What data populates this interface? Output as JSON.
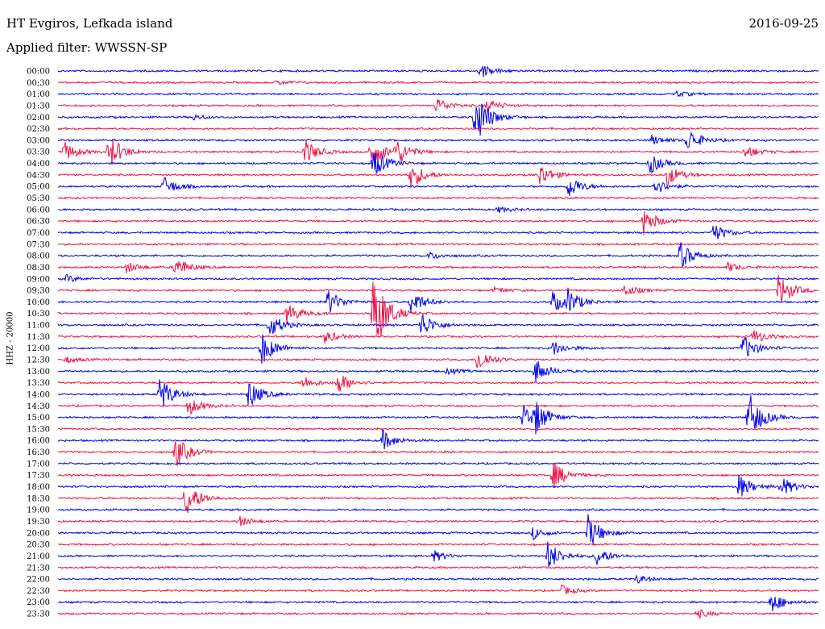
{
  "header": {
    "station": "HT Evgiros, Lefkada island",
    "filter": "Applied filter: WWSSN-SP",
    "date": "2016-09-25"
  },
  "colors": {
    "even_trace": "#0000ee",
    "odd_trace": "#ee1144"
  },
  "chart_data": {
    "type": "line",
    "title": "HT Evgiros, Lefkada island",
    "subtitle": "Applied filter: WWSSN-SP",
    "date": "2016-09-25",
    "ylabel": "HHZ - 20000",
    "xlabel": "",
    "trace_minutes": 30,
    "y_tick_labels": [
      "00:00",
      "00:30",
      "01:00",
      "01:30",
      "02:00",
      "02:30",
      "03:00",
      "03:30",
      "04:00",
      "04:30",
      "05:00",
      "05:30",
      "06:00",
      "06:30",
      "07:00",
      "07:30",
      "08:00",
      "08:30",
      "09:00",
      "09:30",
      "10:00",
      "10:30",
      "11:00",
      "11:30",
      "12:00",
      "12:30",
      "13:00",
      "13:30",
      "14:00",
      "14:30",
      "15:00",
      "15:30",
      "16:00",
      "16:30",
      "17:00",
      "17:30",
      "18:00",
      "18:30",
      "19:00",
      "19:30",
      "20:00",
      "20:30",
      "21:00",
      "21:30",
      "22:00",
      "22:30",
      "23:00",
      "23:30"
    ],
    "events": [
      {
        "row": 0,
        "minute": 16.7,
        "amp": 0.35
      },
      {
        "row": 0,
        "minute": 16.6,
        "amp": 0.3
      },
      {
        "row": 1,
        "minute": 8.6,
        "amp": 0.2
      },
      {
        "row": 2,
        "minute": 24.4,
        "amp": 0.25
      },
      {
        "row": 3,
        "minute": 14.9,
        "amp": 0.7
      },
      {
        "row": 3,
        "minute": 16.9,
        "amp": 0.6
      },
      {
        "row": 4,
        "minute": 16.4,
        "amp": 3.0
      },
      {
        "row": 4,
        "minute": 5.3,
        "amp": 0.25
      },
      {
        "row": 6,
        "minute": 23.4,
        "amp": 0.45
      },
      {
        "row": 6,
        "minute": 24.8,
        "amp": 1.1
      },
      {
        "row": 7,
        "minute": 0.2,
        "amp": 1.0
      },
      {
        "row": 7,
        "minute": 2.0,
        "amp": 1.6
      },
      {
        "row": 7,
        "minute": 9.7,
        "amp": 1.2
      },
      {
        "row": 7,
        "minute": 12.3,
        "amp": 1.6
      },
      {
        "row": 7,
        "minute": 13.3,
        "amp": 1.2
      },
      {
        "row": 7,
        "minute": 27.1,
        "amp": 0.6
      },
      {
        "row": 8,
        "minute": 12.4,
        "amp": 1.4
      },
      {
        "row": 8,
        "minute": 23.3,
        "amp": 1.0
      },
      {
        "row": 9,
        "minute": 13.9,
        "amp": 1.3
      },
      {
        "row": 9,
        "minute": 19.0,
        "amp": 1.0
      },
      {
        "row": 9,
        "minute": 24.0,
        "amp": 1.0
      },
      {
        "row": 10,
        "minute": 4.1,
        "amp": 1.0
      },
      {
        "row": 10,
        "minute": 20.1,
        "amp": 1.1
      },
      {
        "row": 10,
        "minute": 23.5,
        "amp": 0.8
      },
      {
        "row": 12,
        "minute": 17.3,
        "amp": 0.3
      },
      {
        "row": 13,
        "minute": 23.1,
        "amp": 1.2
      },
      {
        "row": 14,
        "minute": 25.8,
        "amp": 0.9
      },
      {
        "row": 16,
        "minute": 24.5,
        "amp": 1.3
      },
      {
        "row": 16,
        "minute": 14.6,
        "amp": 0.35
      },
      {
        "row": 17,
        "minute": 2.7,
        "amp": 0.5
      },
      {
        "row": 17,
        "minute": 4.6,
        "amp": 1.0
      },
      {
        "row": 17,
        "minute": 26.4,
        "amp": 0.4
      },
      {
        "row": 18,
        "minute": 0.3,
        "amp": 0.35
      },
      {
        "row": 19,
        "minute": 17.2,
        "amp": 0.3
      },
      {
        "row": 19,
        "minute": 22.3,
        "amp": 0.6
      },
      {
        "row": 19,
        "minute": 28.4,
        "amp": 1.6
      },
      {
        "row": 20,
        "minute": 10.6,
        "amp": 1.2
      },
      {
        "row": 20,
        "minute": 13.9,
        "amp": 1.2
      },
      {
        "row": 20,
        "minute": 19.5,
        "amp": 1.0
      },
      {
        "row": 20,
        "minute": 20.1,
        "amp": 1.0
      },
      {
        "row": 21,
        "minute": 9.0,
        "amp": 1.0
      },
      {
        "row": 21,
        "minute": 12.4,
        "amp": 4.5
      },
      {
        "row": 22,
        "minute": 14.3,
        "amp": 1.2
      },
      {
        "row": 22,
        "minute": 8.3,
        "amp": 1.2
      },
      {
        "row": 23,
        "minute": 27.4,
        "amp": 0.7
      },
      {
        "row": 23,
        "minute": 10.5,
        "amp": 0.6
      },
      {
        "row": 24,
        "minute": 8.0,
        "amp": 1.6
      },
      {
        "row": 24,
        "minute": 19.5,
        "amp": 0.7
      },
      {
        "row": 24,
        "minute": 27.0,
        "amp": 1.2
      },
      {
        "row": 25,
        "minute": 0.3,
        "amp": 0.3
      },
      {
        "row": 25,
        "minute": 16.5,
        "amp": 1.2
      },
      {
        "row": 26,
        "minute": 18.8,
        "amp": 1.2
      },
      {
        "row": 26,
        "minute": 15.3,
        "amp": 0.3
      },
      {
        "row": 27,
        "minute": 9.6,
        "amp": 0.7
      },
      {
        "row": 27,
        "minute": 11.0,
        "amp": 1.0
      },
      {
        "row": 28,
        "minute": 4.0,
        "amp": 1.6
      },
      {
        "row": 28,
        "minute": 7.5,
        "amp": 1.3
      },
      {
        "row": 29,
        "minute": 5.1,
        "amp": 0.9
      },
      {
        "row": 30,
        "minute": 18.3,
        "amp": 1.3
      },
      {
        "row": 30,
        "minute": 18.8,
        "amp": 1.3
      },
      {
        "row": 30,
        "minute": 27.2,
        "amp": 2.5
      },
      {
        "row": 32,
        "minute": 12.8,
        "amp": 0.9
      },
      {
        "row": 33,
        "minute": 4.6,
        "amp": 1.5
      },
      {
        "row": 35,
        "minute": 19.5,
        "amp": 1.3
      },
      {
        "row": 36,
        "minute": 26.8,
        "amp": 1.2
      },
      {
        "row": 36,
        "minute": 28.5,
        "amp": 0.9
      },
      {
        "row": 37,
        "minute": 5.0,
        "amp": 1.8
      },
      {
        "row": 39,
        "minute": 7.1,
        "amp": 0.5
      },
      {
        "row": 40,
        "minute": 20.9,
        "amp": 1.6
      },
      {
        "row": 40,
        "minute": 18.7,
        "amp": 0.6
      },
      {
        "row": 42,
        "minute": 19.3,
        "amp": 1.4
      },
      {
        "row": 42,
        "minute": 21.2,
        "amp": 0.9
      },
      {
        "row": 42,
        "minute": 14.8,
        "amp": 0.5
      },
      {
        "row": 44,
        "minute": 22.8,
        "amp": 0.4
      },
      {
        "row": 45,
        "minute": 19.8,
        "amp": 0.5
      },
      {
        "row": 46,
        "minute": 28.1,
        "amp": 1.0
      },
      {
        "row": 47,
        "minute": 25.2,
        "amp": 0.4
      }
    ],
    "grid": false
  }
}
